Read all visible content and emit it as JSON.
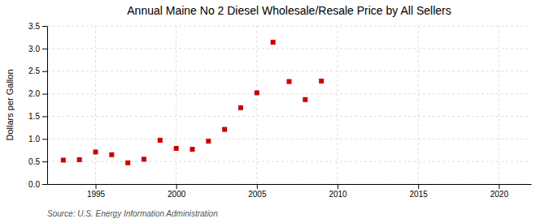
{
  "chart_data": {
    "type": "scatter",
    "title": "Annual Maine No 2 Diesel Wholesale/Resale Price by All Sellers",
    "y_label": "Dollars per Gallon",
    "annotations": [
      "Source: U.S. Energy Information Administration"
    ],
    "x": [
      1993,
      1994,
      1995,
      1996,
      1997,
      1998,
      1999,
      2000,
      2001,
      2002,
      2003,
      2004,
      2005,
      2006,
      2007,
      2008,
      2009
    ],
    "values": [
      0.53,
      0.54,
      0.71,
      0.65,
      0.47,
      0.55,
      0.97,
      0.79,
      0.77,
      0.95,
      1.21,
      1.69,
      2.02,
      3.14,
      2.27,
      1.87,
      2.28
    ],
    "color": "#cc0000",
    "marker": "square",
    "xlim": [
      1992,
      2022
    ],
    "ylim": [
      0.0,
      3.5
    ],
    "xticks": [
      1995,
      2000,
      2005,
      2010,
      2015,
      2020
    ],
    "yticks": [
      {
        "value": 0.0,
        "label": "0.0"
      },
      0.5,
      {
        "value": 1.0,
        "label": "1.0"
      },
      1.5,
      {
        "value": 2.0,
        "label": "2.0"
      },
      2.5,
      {
        "value": 3.0,
        "label": "3.0"
      },
      3.5
    ],
    "grid": true
  }
}
